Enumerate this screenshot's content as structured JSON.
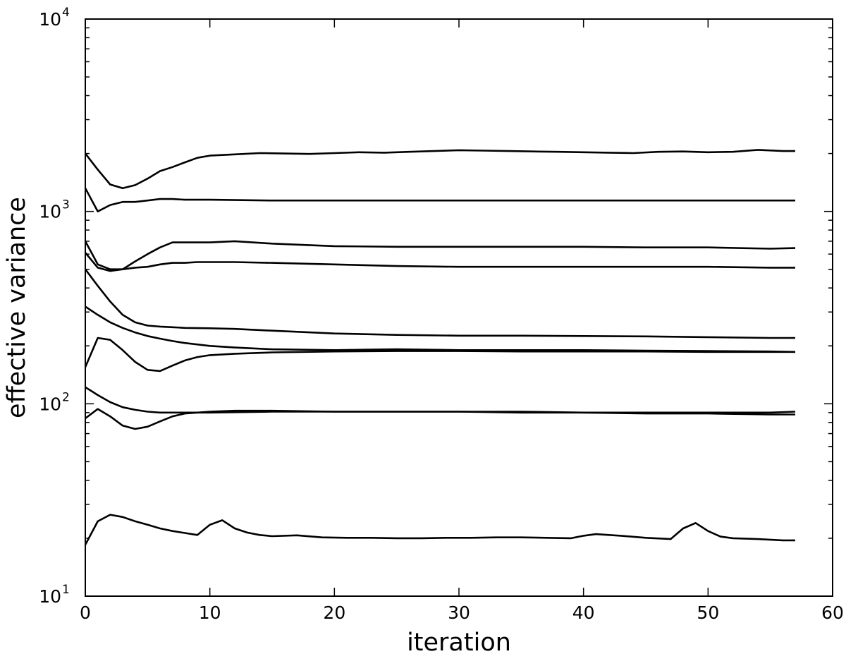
{
  "chart_data": {
    "type": "line",
    "xlabel": "iteration",
    "ylabel": "effective variance",
    "y_scale": "log",
    "xlim": [
      0,
      60
    ],
    "ylim": [
      10,
      10000
    ],
    "line_color": "#000000",
    "grid": false,
    "x_ticks": [
      {
        "value": 0,
        "label": "0"
      },
      {
        "value": 10,
        "label": "10"
      },
      {
        "value": 20,
        "label": "20"
      },
      {
        "value": 30,
        "label": "30"
      },
      {
        "value": 40,
        "label": "40"
      },
      {
        "value": 50,
        "label": "50"
      },
      {
        "value": 60,
        "label": "60"
      }
    ],
    "y_ticks": [
      {
        "value": 10,
        "base": "10",
        "exponent": "1"
      },
      {
        "value": 100,
        "base": "10",
        "exponent": "2"
      },
      {
        "value": 1000,
        "base": "10",
        "exponent": "3"
      },
      {
        "value": 10000,
        "base": "10",
        "exponent": "4"
      }
    ],
    "series": [
      {
        "x": [
          0,
          1,
          2,
          3,
          4,
          5,
          6,
          7,
          8,
          9,
          10,
          12,
          14,
          16,
          18,
          20,
          22,
          24,
          26,
          28,
          30,
          32,
          34,
          36,
          38,
          40,
          42,
          44,
          46,
          48,
          50,
          52,
          54,
          56,
          57
        ],
        "y": [
          2000,
          1650,
          1380,
          1320,
          1370,
          1480,
          1620,
          1700,
          1800,
          1900,
          1950,
          1980,
          2010,
          2000,
          1990,
          2010,
          2030,
          2020,
          2040,
          2060,
          2080,
          2070,
          2060,
          2050,
          2040,
          2030,
          2020,
          2010,
          2040,
          2050,
          2030,
          2040,
          2090,
          2060,
          2060
        ]
      },
      {
        "x": [
          0,
          1,
          2,
          3,
          4,
          5,
          6,
          7,
          8,
          9,
          10,
          15,
          20,
          25,
          30,
          35,
          40,
          45,
          50,
          55,
          57
        ],
        "y": [
          1320,
          1000,
          1080,
          1120,
          1120,
          1140,
          1160,
          1160,
          1150,
          1150,
          1150,
          1140,
          1140,
          1140,
          1140,
          1140,
          1140,
          1140,
          1140,
          1140,
          1140
        ]
      },
      {
        "x": [
          0,
          1,
          2,
          3,
          4,
          5,
          6,
          7,
          8,
          9,
          10,
          12,
          15,
          20,
          25,
          30,
          35,
          40,
          45,
          50,
          55,
          57
        ],
        "y": [
          700,
          530,
          500,
          500,
          550,
          600,
          650,
          690,
          690,
          690,
          690,
          700,
          680,
          660,
          655,
          655,
          655,
          655,
          650,
          650,
          640,
          645
        ]
      },
      {
        "x": [
          0,
          1,
          2,
          3,
          4,
          5,
          6,
          7,
          8,
          9,
          10,
          12,
          15,
          20,
          25,
          30,
          35,
          40,
          45,
          50,
          55,
          57
        ],
        "y": [
          610,
          510,
          490,
          500,
          510,
          515,
          530,
          540,
          540,
          545,
          545,
          545,
          540,
          530,
          520,
          515,
          515,
          515,
          515,
          515,
          510,
          510
        ]
      },
      {
        "x": [
          0,
          1,
          2,
          3,
          4,
          5,
          6,
          7,
          8,
          10,
          12,
          15,
          20,
          25,
          30,
          35,
          40,
          45,
          50,
          55,
          57
        ],
        "y": [
          500,
          410,
          340,
          290,
          265,
          255,
          252,
          250,
          248,
          247,
          245,
          240,
          232,
          228,
          226,
          226,
          225,
          224,
          222,
          220,
          220
        ]
      },
      {
        "x": [
          0,
          1,
          2,
          3,
          4,
          5,
          6,
          7,
          8,
          10,
          12,
          15,
          20,
          25,
          30,
          35,
          40,
          45,
          50,
          55,
          57
        ],
        "y": [
          320,
          290,
          265,
          248,
          235,
          225,
          218,
          212,
          207,
          200,
          196,
          192,
          190,
          192,
          190,
          190,
          190,
          189,
          188,
          187,
          186
        ]
      },
      {
        "x": [
          0,
          1,
          2,
          3,
          4,
          5,
          6,
          7,
          8,
          9,
          10,
          12,
          15,
          20,
          25,
          30,
          35,
          40,
          45,
          50,
          55,
          57
        ],
        "y": [
          155,
          220,
          215,
          190,
          165,
          150,
          148,
          158,
          168,
          175,
          179,
          182,
          185,
          187,
          188,
          188,
          187,
          187,
          187,
          186,
          186,
          186
        ]
      },
      {
        "x": [
          0,
          1,
          2,
          3,
          4,
          5,
          6,
          7,
          8,
          10,
          15,
          20,
          25,
          30,
          35,
          40,
          45,
          50,
          55,
          57
        ],
        "y": [
          122,
          111,
          102,
          96,
          93,
          91,
          90,
          90,
          90,
          90,
          91,
          91,
          91,
          91,
          91,
          90,
          90,
          90,
          90,
          91
        ]
      },
      {
        "x": [
          0,
          1,
          2,
          3,
          4,
          5,
          6,
          7,
          8,
          9,
          10,
          12,
          15,
          20,
          25,
          30,
          35,
          40,
          45,
          50,
          55,
          57
        ],
        "y": [
          84,
          94,
          86,
          77,
          74,
          76,
          81,
          86,
          89,
          90,
          91,
          92,
          92,
          91,
          91,
          91,
          90,
          90,
          89,
          89,
          88,
          88
        ]
      },
      {
        "x": [
          0,
          1,
          2,
          3,
          4,
          5,
          6,
          7,
          8,
          9,
          10,
          11,
          12,
          13,
          14,
          15,
          17,
          19,
          21,
          23,
          25,
          27,
          29,
          31,
          33,
          35,
          37,
          39,
          40,
          41,
          43,
          45,
          47,
          48,
          49,
          50,
          51,
          52,
          54,
          56,
          57
        ],
        "y": [
          18.5,
          24.5,
          26.5,
          25.8,
          24.5,
          23.5,
          22.5,
          21.8,
          21.3,
          20.8,
          23.5,
          24.8,
          22.5,
          21.4,
          20.8,
          20.5,
          20.7,
          20.2,
          20.1,
          20.1,
          20.0,
          20.0,
          20.1,
          20.1,
          20.2,
          20.2,
          20.1,
          20.0,
          20.6,
          21.0,
          20.6,
          20.1,
          19.8,
          22.5,
          24.0,
          21.8,
          20.4,
          20.0,
          19.8,
          19.5,
          19.5
        ]
      }
    ]
  }
}
